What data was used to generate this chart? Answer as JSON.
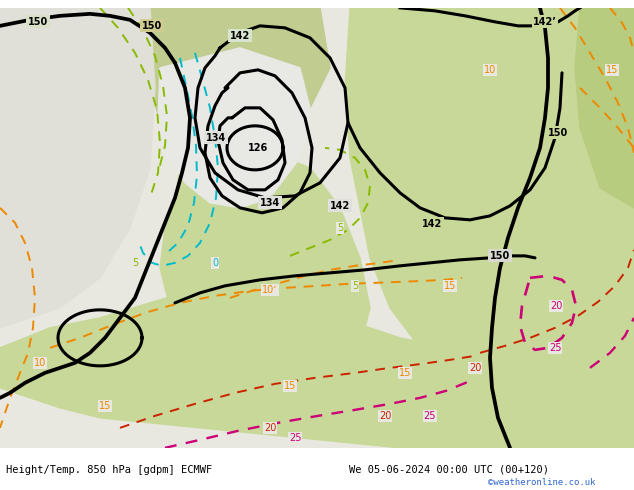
{
  "title_left": "Height/Temp. 850 hPa [gdpm] ECMWF",
  "title_right": "We 05-06-2024 00:00 UTC (00+120)",
  "watermark": "©weatheronline.co.uk",
  "fig_width": 6.34,
  "fig_height": 4.9,
  "dpi": 100,
  "bg_main": "#f0f0e8",
  "bg_land_green": "#c8d8a0",
  "bg_land_light": "#d8e8b8",
  "bg_sea_white": "#e8e8e0",
  "title_fontsize": 7.5,
  "watermark_fontsize": 6.5,
  "label_fontsize": 7,
  "geop_lw": 2.2,
  "temp_lw": 1.4,
  "geop_color": "#000000",
  "temp_cyan_color": "#00bbcc",
  "temp_green_color": "#88bb00",
  "temp_orange_color": "#ee8800",
  "temp_red_color": "#cc2200",
  "temp_magenta_color": "#cc0077"
}
